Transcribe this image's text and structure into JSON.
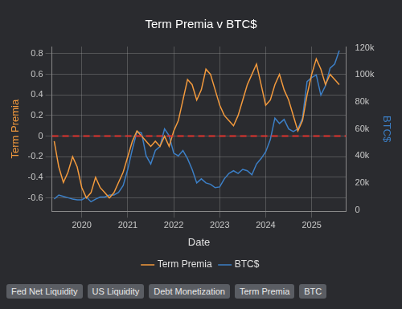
{
  "chart_data": {
    "type": "line",
    "title": "Term Premia v BTC$",
    "x_label": "Date",
    "y_label": "Term Premia",
    "y2_label": "BTC$",
    "x": [
      2019.4,
      2019.5,
      2019.6,
      2019.7,
      2019.8,
      2019.9,
      2020.0,
      2020.1,
      2020.2,
      2020.3,
      2020.4,
      2020.5,
      2020.6,
      2020.7,
      2020.8,
      2020.9,
      2021.0,
      2021.1,
      2021.2,
      2021.3,
      2021.4,
      2021.5,
      2021.6,
      2021.7,
      2021.8,
      2021.9,
      2022.0,
      2022.1,
      2022.2,
      2022.3,
      2022.4,
      2022.5,
      2022.6,
      2022.7,
      2022.8,
      2022.9,
      2023.0,
      2023.1,
      2023.2,
      2023.3,
      2023.4,
      2023.5,
      2023.6,
      2023.7,
      2023.8,
      2023.9,
      2024.0,
      2024.1,
      2024.2,
      2024.3,
      2024.4,
      2024.5,
      2024.6,
      2024.7,
      2024.8,
      2024.9,
      2025.0,
      2025.1,
      2025.2,
      2025.3,
      2025.4,
      2025.5,
      2025.6
    ],
    "series": [
      {
        "name": "Term Premia",
        "color": "#f39a3d",
        "axis": "y",
        "values": [
          -0.05,
          -0.3,
          -0.45,
          -0.35,
          -0.2,
          -0.3,
          -0.5,
          -0.6,
          -0.55,
          -0.4,
          -0.5,
          -0.55,
          -0.6,
          -0.55,
          -0.45,
          -0.35,
          -0.2,
          -0.05,
          0.05,
          0.0,
          -0.05,
          -0.1,
          -0.05,
          -0.1,
          0.0,
          -0.1,
          0.05,
          0.15,
          0.35,
          0.55,
          0.5,
          0.35,
          0.45,
          0.65,
          0.6,
          0.45,
          0.3,
          0.2,
          0.15,
          0.1,
          0.2,
          0.35,
          0.5,
          0.6,
          0.7,
          0.5,
          0.3,
          0.35,
          0.5,
          0.6,
          0.45,
          0.35,
          0.2,
          0.05,
          0.15,
          0.4,
          0.6,
          0.75,
          0.65,
          0.5,
          0.6,
          0.55,
          0.5
        ]
      },
      {
        "name": "BTC$",
        "color": "#3c7fc6",
        "axis": "y2",
        "values": [
          8000,
          11000,
          10000,
          9000,
          8000,
          7500,
          7500,
          9500,
          6000,
          8000,
          9500,
          9500,
          11000,
          11000,
          13000,
          18000,
          30000,
          45000,
          58000,
          57000,
          40000,
          34000,
          44000,
          47000,
          60000,
          55000,
          42000,
          40000,
          44000,
          38000,
          30000,
          20000,
          23000,
          20000,
          19000,
          16500,
          17000,
          23000,
          27000,
          29000,
          27000,
          30000,
          29000,
          26000,
          34000,
          38000,
          43000,
          52000,
          68000,
          64000,
          67000,
          60000,
          58000,
          60000,
          68000,
          95000,
          98000,
          100000,
          85000,
          92000,
          105000,
          108000,
          118000
        ]
      }
    ],
    "xlim": [
      2019.35,
      2025.75
    ],
    "xticks": [
      2020,
      2021,
      2022,
      2023,
      2024,
      2025
    ],
    "ylim": [
      -0.73,
      0.87
    ],
    "yticks": [
      -0.6,
      -0.4,
      -0.2,
      0,
      0.2,
      0.4,
      0.6,
      0.8
    ],
    "y2lim": [
      -1000,
      121000
    ],
    "y2ticks": [
      0,
      {
        "value": 20000,
        "label": "20k"
      },
      {
        "value": 40000,
        "label": "40k"
      },
      {
        "value": 60000,
        "label": "60k"
      },
      {
        "value": 80000,
        "label": "80k"
      },
      {
        "value": 100000,
        "label": "100k"
      },
      {
        "value": 120000,
        "label": "120k"
      }
    ],
    "hlines": [
      {
        "value": 0,
        "color": "#e0342f",
        "line_style": "dashed"
      }
    ],
    "grid": true,
    "legend": "bottom"
  },
  "buttons": [
    "Fed Net Liquidity",
    "US Liquidity",
    "Debt Monetization",
    "Term Premia",
    "BTC"
  ]
}
